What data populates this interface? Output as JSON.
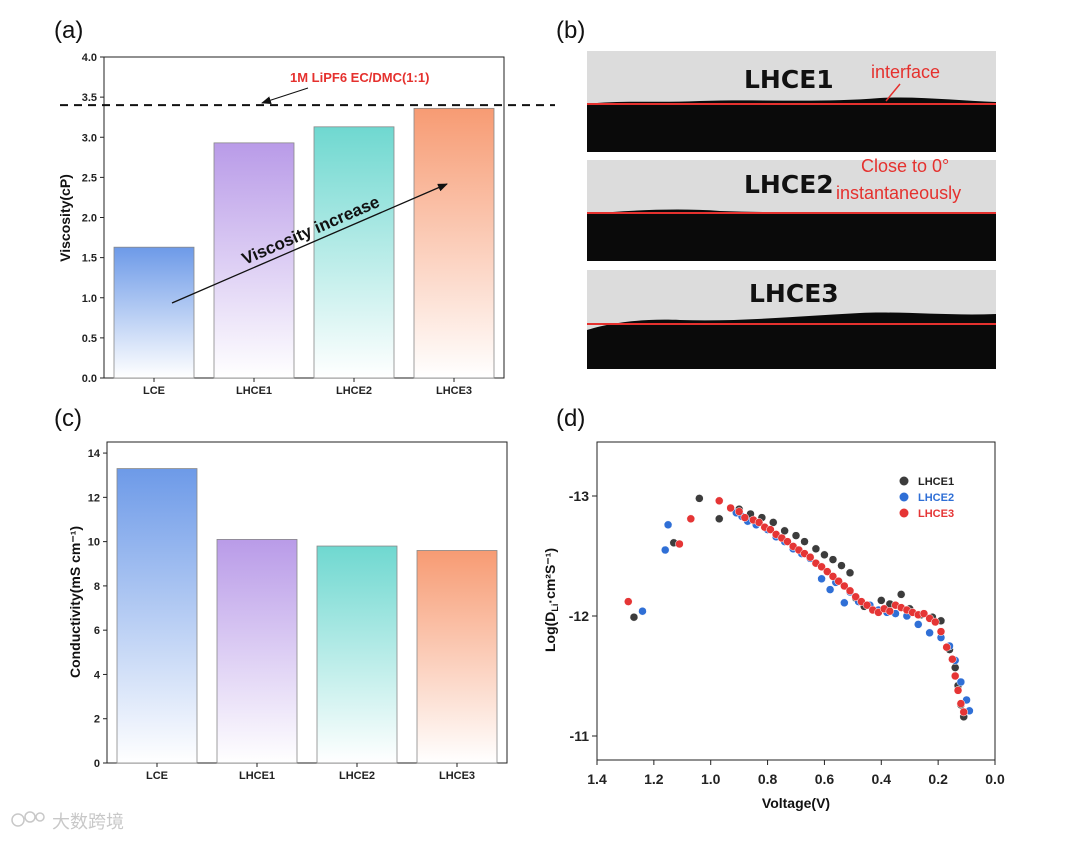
{
  "panels": {
    "a": "(a)",
    "b": "(b)",
    "c": "(c)",
    "d": "(d)"
  },
  "chart_data": [
    {
      "id": "a",
      "type": "bar",
      "categories": [
        "LCE",
        "LHCE1",
        "LHCE2",
        "LHCE3"
      ],
      "values": [
        1.63,
        2.93,
        3.13,
        3.36
      ],
      "ylabel": "Viscosity(cP)",
      "ylim": [
        0,
        4.0
      ],
      "yticks": [
        "0.0",
        "0.5",
        "1.0",
        "1.5",
        "2.0",
        "2.5",
        "3.0",
        "3.5",
        "4.0"
      ],
      "colors": [
        "#6d9ae8",
        "#b99be8",
        "#6fd8d0",
        "#f79b73"
      ],
      "reference_line": {
        "value": 3.4,
        "label": "1M LiPF6 EC/DMC(1:1)"
      },
      "annotation": "Viscosity increase"
    },
    {
      "id": "c",
      "type": "bar",
      "categories": [
        "LCE",
        "LHCE1",
        "LHCE2",
        "LHCE3"
      ],
      "values": [
        13.3,
        10.1,
        9.8,
        9.6
      ],
      "ylabel": "Conductivity(mS cm⁻¹)",
      "ylim": [
        0,
        14.5
      ],
      "yticks": [
        "0",
        "2",
        "4",
        "6",
        "8",
        "10",
        "12",
        "14"
      ],
      "colors": [
        "#6d9ae8",
        "#b99be8",
        "#6fd8d0",
        "#f79b73"
      ]
    },
    {
      "id": "d",
      "type": "scatter",
      "xlabel": "Voltage(V)",
      "ylabel": "Log(D",
      "ylabel_sub": "Li",
      "ylabel_rest": "·cm²S⁻¹)",
      "xlim": [
        1.4,
        0.0
      ],
      "ylim": [
        -13.45,
        -10.8
      ],
      "xticks": [
        "1.4",
        "1.2",
        "1.0",
        "0.8",
        "0.6",
        "0.4",
        "0.2",
        "0.0"
      ],
      "yticks": [
        "-13",
        "-12",
        "-11"
      ],
      "series": [
        {
          "name": "LHCE1",
          "color": "#3c3c3c",
          "x": [
            1.27,
            1.13,
            1.04,
            0.97,
            0.9,
            0.86,
            0.82,
            0.78,
            0.74,
            0.7,
            0.67,
            0.63,
            0.6,
            0.57,
            0.54,
            0.51,
            0.49,
            0.46,
            0.43,
            0.4,
            0.37,
            0.33,
            0.3,
            0.26,
            0.22,
            0.19,
            0.16,
            0.14,
            0.13,
            0.12,
            0.11
          ],
          "y": [
            -11.99,
            -12.61,
            -12.98,
            -12.81,
            -12.89,
            -12.85,
            -12.82,
            -12.78,
            -12.71,
            -12.67,
            -12.62,
            -12.56,
            -12.51,
            -12.47,
            -12.42,
            -12.36,
            -12.15,
            -12.08,
            -12.05,
            -12.13,
            -12.1,
            -12.18,
            -12.06,
            -12.01,
            -11.99,
            -11.96,
            -11.72,
            -11.57,
            -11.42,
            -11.26,
            -11.16
          ]
        },
        {
          "name": "LHCE2",
          "color": "#2f6fd6",
          "x": [
            1.24,
            1.16,
            1.15,
            0.91,
            0.89,
            0.87,
            0.84,
            0.8,
            0.77,
            0.74,
            0.71,
            0.68,
            0.65,
            0.61,
            0.58,
            0.56,
            0.53,
            0.51,
            0.48,
            0.44,
            0.41,
            0.38,
            0.35,
            0.31,
            0.27,
            0.23,
            0.19,
            0.16,
            0.14,
            0.12,
            0.1,
            0.09
          ],
          "y": [
            -12.04,
            -12.55,
            -12.76,
            -12.86,
            -12.83,
            -12.79,
            -12.76,
            -12.72,
            -12.66,
            -12.62,
            -12.56,
            -12.52,
            -12.48,
            -12.31,
            -12.22,
            -12.28,
            -12.11,
            -12.2,
            -12.12,
            -12.09,
            -12.05,
            -12.03,
            -12.02,
            -12.0,
            -11.93,
            -11.86,
            -11.82,
            -11.75,
            -11.63,
            -11.45,
            -11.3,
            -11.21
          ]
        },
        {
          "name": "LHCE3",
          "color": "#e53535",
          "x": [
            1.29,
            1.11,
            1.07,
            0.97,
            0.93,
            0.9,
            0.88,
            0.85,
            0.83,
            0.81,
            0.79,
            0.77,
            0.75,
            0.73,
            0.71,
            0.69,
            0.67,
            0.65,
            0.63,
            0.61,
            0.59,
            0.57,
            0.55,
            0.53,
            0.51,
            0.49,
            0.47,
            0.45,
            0.43,
            0.41,
            0.39,
            0.37,
            0.35,
            0.33,
            0.31,
            0.29,
            0.27,
            0.25,
            0.23,
            0.21,
            0.19,
            0.17,
            0.15,
            0.14,
            0.13,
            0.12,
            0.11
          ],
          "y": [
            -12.12,
            -12.6,
            -12.81,
            -12.96,
            -12.9,
            -12.87,
            -12.82,
            -12.8,
            -12.78,
            -12.74,
            -12.72,
            -12.68,
            -12.65,
            -12.62,
            -12.58,
            -12.55,
            -12.52,
            -12.49,
            -12.44,
            -12.41,
            -12.37,
            -12.33,
            -12.29,
            -12.25,
            -12.21,
            -12.16,
            -12.12,
            -12.09,
            -12.05,
            -12.03,
            -12.06,
            -12.04,
            -12.09,
            -12.07,
            -12.05,
            -12.03,
            -12.01,
            -12.02,
            -11.98,
            -11.95,
            -11.87,
            -11.74,
            -11.64,
            -11.5,
            -11.38,
            -11.27,
            -11.2
          ]
        }
      ]
    }
  ],
  "photos": {
    "row1": {
      "label": "LHCE1",
      "note": "interface"
    },
    "row2": {
      "label": "LHCE2",
      "note_line1": "Close to 0°",
      "note_line2": "instantaneously"
    },
    "row3": {
      "label": "LHCE3"
    }
  },
  "watermark": "大数跨境"
}
